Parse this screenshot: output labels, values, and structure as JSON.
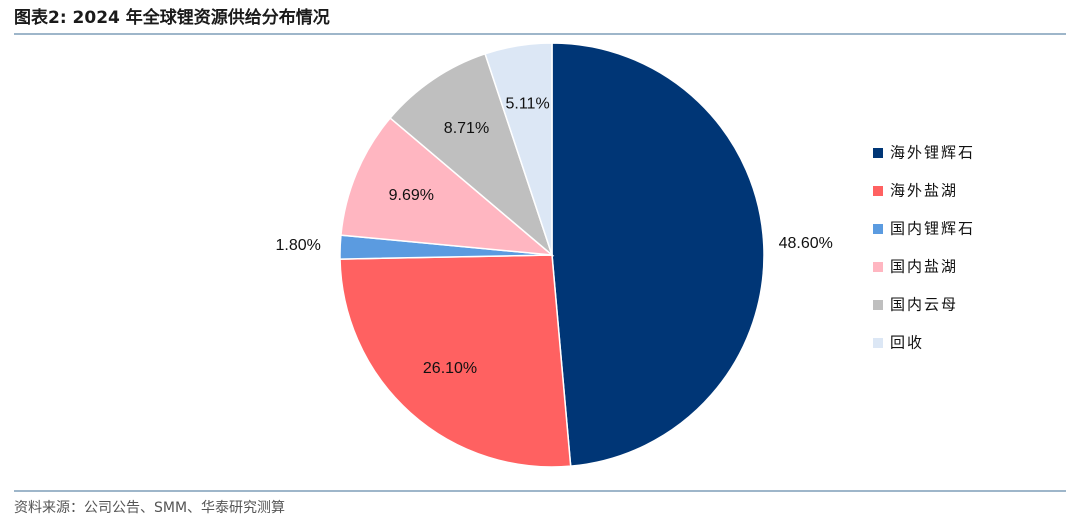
{
  "chart_data": {
    "type": "pie",
    "title": "图表2:  2024 年全球锂资源供给分布情况",
    "source": "资料来源：公司公告、SMM、华泰研究测算",
    "categories": [
      "海外锂辉石",
      "海外盐湖",
      "国内锂辉石",
      "国内盐湖",
      "国内云母",
      "回收"
    ],
    "values": [
      48.6,
      26.1,
      1.8,
      9.69,
      8.71,
      5.11
    ],
    "value_labels": [
      "48.60%",
      "26.10%",
      "1.80%",
      "9.69%",
      "8.71%",
      "5.11%"
    ],
    "colors": [
      "#003676",
      "#FF6161",
      "#5B9BE0",
      "#FFB6C1",
      "#BFBFBF",
      "#DCE7F5"
    ],
    "legend": "right"
  }
}
